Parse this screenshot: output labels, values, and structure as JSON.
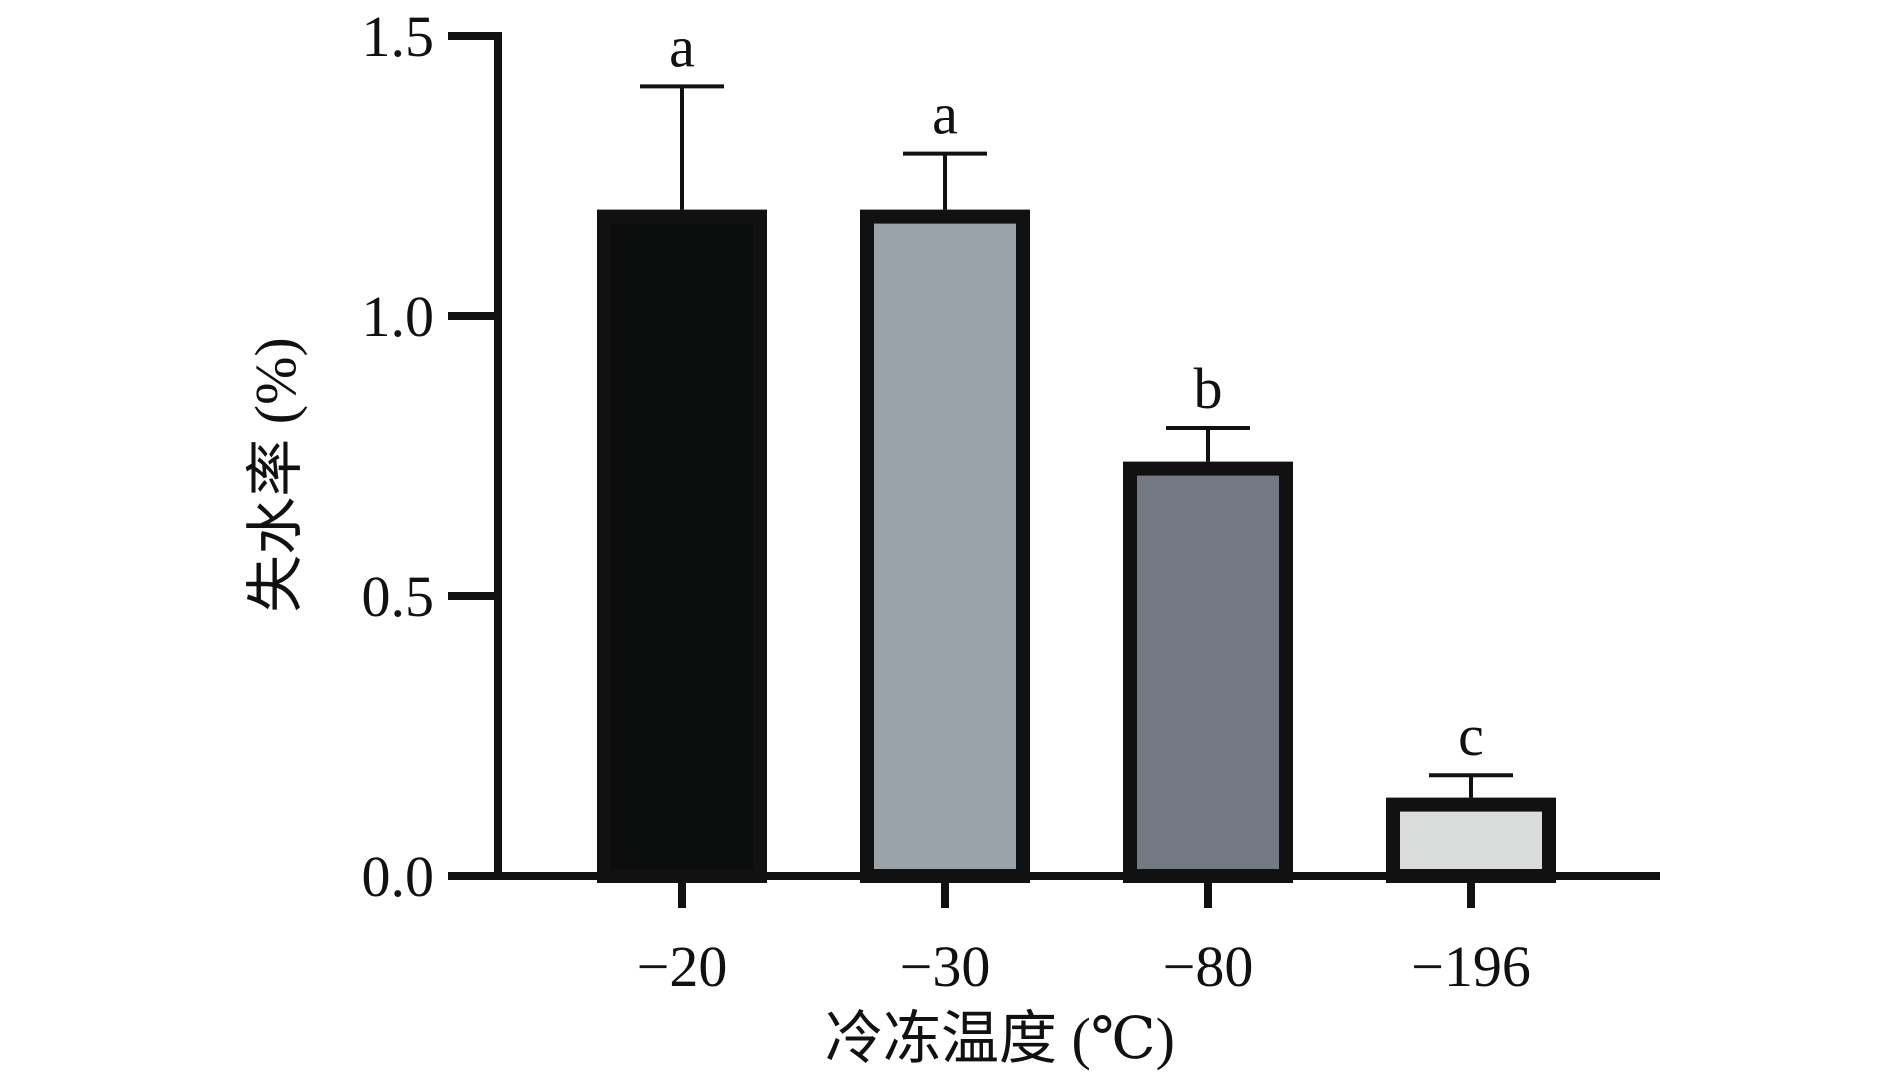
{
  "chart_data": {
    "type": "bar",
    "categories": [
      "−20",
      "−30",
      "−80",
      "−196"
    ],
    "values": [
      1.19,
      1.19,
      0.74,
      0.14
    ],
    "error_upper": [
      1.41,
      1.29,
      0.8,
      0.18
    ],
    "significance": [
      "a",
      "a",
      "b",
      "c"
    ],
    "bar_colors": [
      "#0b0d0c",
      "#9aa3a9",
      "#737883",
      "#d9dcda"
    ],
    "title": "",
    "xlabel": "冷冻温度 (℃)",
    "ylabel": "失水率 (%)",
    "ylim": [
      0,
      1.5
    ],
    "yticks": [
      0.0,
      0.5,
      1.0,
      1.5
    ],
    "ytick_labels": [
      "0.0",
      "0.5",
      "1.0",
      "1.5"
    ],
    "grid": false,
    "legend": "none"
  }
}
